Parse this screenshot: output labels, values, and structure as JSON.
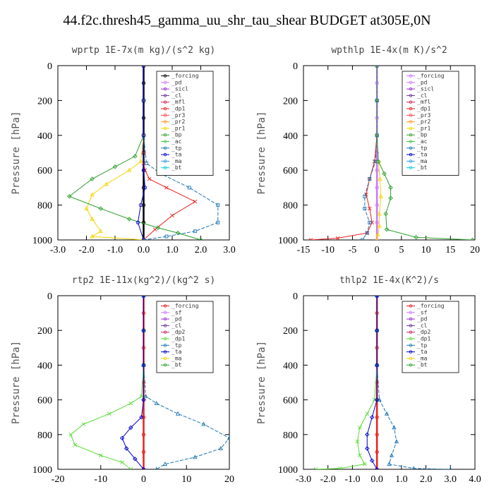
{
  "title": "44.f2c.thresh45_gamma_uu_shr_tau_shear  BUDGET at305E,0N",
  "chart_data": [
    {
      "type": "line",
      "title": "wprtp   1E-7x(m kg)/(s^2 kg)",
      "ylabel": "Pressure [hPa]",
      "xlim": [
        -3.0,
        3.0
      ],
      "ylim": [
        1000,
        0
      ],
      "xticks": [
        "-3.0",
        "-2.0",
        "-1.0",
        "0.0",
        "1.0",
        "2.0",
        "3.0"
      ],
      "yticks": [
        "0",
        "200",
        "400",
        "600",
        "800",
        "1000"
      ],
      "legend": [
        "_forcing",
        "_pd",
        "_sicl",
        "_cl",
        "_mfl",
        "_dp1",
        "_pr3",
        "_pr2",
        "_pr1",
        "_bp",
        "_ac",
        "_tp",
        "_ta",
        "_ma",
        "_bt"
      ],
      "series": [
        {
          "name": "_forcing",
          "color": "#000000",
          "x": [
            0,
            0,
            0,
            0,
            0,
            0,
            0,
            0,
            0,
            0,
            0
          ],
          "y": [
            0,
            100,
            200,
            300,
            400,
            500,
            600,
            700,
            800,
            900,
            1000
          ]
        },
        {
          "name": "_dp1",
          "color": "#e8201e",
          "x": [
            0,
            0,
            0,
            0,
            0,
            0.05,
            0.2,
            0.8,
            1.8,
            1.0,
            0.4,
            0
          ],
          "y": [
            0,
            200,
            400,
            500,
            560,
            600,
            650,
            700,
            780,
            860,
            940,
            1000
          ]
        },
        {
          "name": "_pr1",
          "color": "#f5d400",
          "x": [
            0,
            0,
            0,
            -0.1,
            -0.5,
            -1.3,
            -1.8,
            -2.0,
            -1.8,
            -1.5,
            -1.8,
            0
          ],
          "y": [
            0,
            200,
            400,
            550,
            600,
            680,
            740,
            820,
            880,
            950,
            980,
            1000
          ]
        },
        {
          "name": "_bp",
          "color": "#2ca02c",
          "x": [
            0,
            0,
            0,
            -0.3,
            -1.0,
            -1.8,
            -2.6,
            -1.5,
            -0.5,
            0.5,
            1.2,
            2.0
          ],
          "y": [
            0,
            200,
            400,
            520,
            580,
            650,
            750,
            820,
            880,
            930,
            960,
            1000
          ]
        },
        {
          "name": "_tp",
          "color": "#1f77b4",
          "x": [
            0,
            0,
            0,
            0.1,
            0.6,
            1.6,
            2.6,
            2.6,
            1.8,
            0.8,
            0
          ],
          "y": [
            0,
            200,
            400,
            560,
            620,
            700,
            800,
            900,
            950,
            980,
            1000
          ]
        },
        {
          "name": "_ta",
          "color": "#0000cc",
          "x": [
            0,
            0,
            0,
            0,
            0.05,
            -0.1,
            -0.2,
            0
          ],
          "y": [
            0,
            200,
            400,
            600,
            700,
            800,
            900,
            1000
          ]
        }
      ]
    },
    {
      "type": "line",
      "title": "wpthlp   1E-4x(m K)/s^2",
      "ylabel": "Pressure [hPa]",
      "xlim": [
        -15,
        20
      ],
      "ylim": [
        1000,
        0
      ],
      "xticks": [
        "-15",
        "-10",
        "-5",
        "0",
        "5",
        "10",
        "15",
        "20"
      ],
      "yticks": [
        "0",
        "200",
        "400",
        "600",
        "800",
        "1000"
      ],
      "legend": [
        "_forcing",
        "_pd",
        "_sicl",
        "_cl",
        "_mfl",
        "_dp1",
        "_pr3",
        "_pr2",
        "_pr1",
        "_bp",
        "_ac",
        "_tp",
        "_ta",
        "_ma",
        "_bt"
      ],
      "series": [
        {
          "name": "_forcing",
          "color": "#cc77ff",
          "x": [
            0,
            0,
            0,
            0,
            0,
            0,
            0,
            0,
            0,
            0,
            0
          ],
          "y": [
            0,
            100,
            200,
            300,
            400,
            500,
            600,
            700,
            800,
            900,
            1000
          ]
        },
        {
          "name": "_dp1",
          "color": "#e8201e",
          "x": [
            0,
            0,
            0,
            -0.5,
            -1.5,
            -2.2,
            -1.5,
            -1.0,
            -2.0,
            -8.0,
            -13.5
          ],
          "y": [
            0,
            200,
            400,
            550,
            650,
            740,
            820,
            900,
            960,
            990,
            1000
          ]
        },
        {
          "name": "_pr1",
          "color": "#f5d400",
          "x": [
            0,
            0,
            0,
            0.3,
            0.6,
            0.8,
            0.5,
            0.5,
            0.2,
            0
          ],
          "y": [
            0,
            200,
            400,
            550,
            650,
            750,
            850,
            920,
            970,
            1000
          ]
        },
        {
          "name": "_bp",
          "color": "#2ca02c",
          "x": [
            0,
            0,
            0,
            0.3,
            1.5,
            2.8,
            2.8,
            1.8,
            2.0,
            8.0,
            19.5
          ],
          "y": [
            0,
            200,
            400,
            550,
            620,
            700,
            760,
            850,
            940,
            985,
            1000
          ]
        },
        {
          "name": "_tp",
          "color": "#1f77b4",
          "x": [
            0,
            0,
            0,
            -0.3,
            -1.5,
            -2.5,
            -2.5,
            -1.5,
            -2.0,
            -3.0
          ],
          "y": [
            0,
            200,
            400,
            550,
            650,
            750,
            820,
            900,
            960,
            1000
          ]
        }
      ]
    },
    {
      "type": "line",
      "title": "rtp2   1E-11x(kg^2)/(kg^2 s)",
      "ylabel": "Pressure [hPa]",
      "xlim": [
        -20,
        20
      ],
      "ylim": [
        1000,
        0
      ],
      "xticks": [
        "-20",
        "-10",
        "0",
        "10",
        "20"
      ],
      "yticks": [
        "0",
        "200",
        "400",
        "600",
        "800",
        "1000"
      ],
      "legend": [
        "_forcing",
        "_sf",
        "_pd",
        "_cl",
        "_dp2",
        "_dp1",
        "_tp",
        "_ta",
        "_ma",
        "_bt"
      ],
      "series": [
        {
          "name": "_forcing",
          "color": "#e8201e",
          "x": [
            0,
            0,
            0,
            0,
            0,
            0,
            0,
            0,
            0,
            0,
            0
          ],
          "y": [
            0,
            100,
            200,
            300,
            400,
            500,
            600,
            700,
            800,
            900,
            1000
          ]
        },
        {
          "name": "_dp1",
          "color": "#55dd33",
          "x": [
            0,
            0,
            0,
            -0.5,
            -3,
            -8,
            -14,
            -17,
            -16,
            -10,
            -5,
            -3
          ],
          "y": [
            0,
            200,
            400,
            580,
            620,
            680,
            740,
            800,
            860,
            920,
            960,
            1000
          ]
        },
        {
          "name": "_tp",
          "color": "#1f77b4",
          "x": [
            0,
            0,
            0,
            0.5,
            3,
            8,
            14,
            20,
            18,
            12,
            5,
            3
          ],
          "y": [
            0,
            200,
            400,
            580,
            620,
            680,
            740,
            820,
            880,
            930,
            970,
            1000
          ]
        },
        {
          "name": "_ta",
          "color": "#0000cc",
          "x": [
            0,
            0,
            0,
            0,
            -0.5,
            -3,
            -5,
            -4,
            -2,
            0
          ],
          "y": [
            0,
            200,
            400,
            600,
            700,
            760,
            820,
            880,
            940,
            1000
          ]
        }
      ]
    },
    {
      "type": "line",
      "title": "thlp2   1E-4x(K^2)/s",
      "ylabel": "Pressure [hPa]",
      "xlim": [
        -3.0,
        4.0
      ],
      "ylim": [
        1000,
        0
      ],
      "xticks": [
        "-3.0",
        "-2.0",
        "-1.0",
        "0.0",
        "1.0",
        "2.0",
        "3.0",
        "4.0"
      ],
      "yticks": [
        "0",
        "200",
        "400",
        "600",
        "800",
        "1000"
      ],
      "legend": [
        "_forcing",
        "_sf",
        "_pd",
        "_cl",
        "_dp2",
        "_dp1",
        "_tp",
        "_ta",
        "_ma",
        "_bt"
      ],
      "series": [
        {
          "name": "_forcing",
          "color": "#e8201e",
          "x": [
            0,
            0,
            0,
            0,
            0,
            0,
            0,
            0,
            0,
            0,
            0
          ],
          "y": [
            0,
            100,
            200,
            300,
            400,
            500,
            600,
            700,
            800,
            900,
            1000
          ]
        },
        {
          "name": "_dp1",
          "color": "#55dd33",
          "x": [
            0,
            0,
            0,
            -0.1,
            -0.4,
            -0.7,
            -0.8,
            -0.7,
            -0.5,
            -1.5,
            -2.5
          ],
          "y": [
            0,
            200,
            400,
            600,
            680,
            760,
            840,
            920,
            970,
            995,
            1000
          ]
        },
        {
          "name": "_tp",
          "color": "#1f77b4",
          "x": [
            0,
            0,
            0,
            0.1,
            0.4,
            0.7,
            0.8,
            0.6,
            0.5,
            1.5,
            3.0
          ],
          "y": [
            0,
            200,
            400,
            600,
            680,
            760,
            840,
            920,
            970,
            995,
            1000
          ]
        },
        {
          "name": "_ta",
          "color": "#0000cc",
          "x": [
            0,
            0,
            0,
            0,
            -0.2,
            -0.4,
            -0.4,
            -0.2,
            0
          ],
          "y": [
            0,
            200,
            400,
            600,
            700,
            800,
            880,
            950,
            1000
          ]
        }
      ]
    }
  ]
}
